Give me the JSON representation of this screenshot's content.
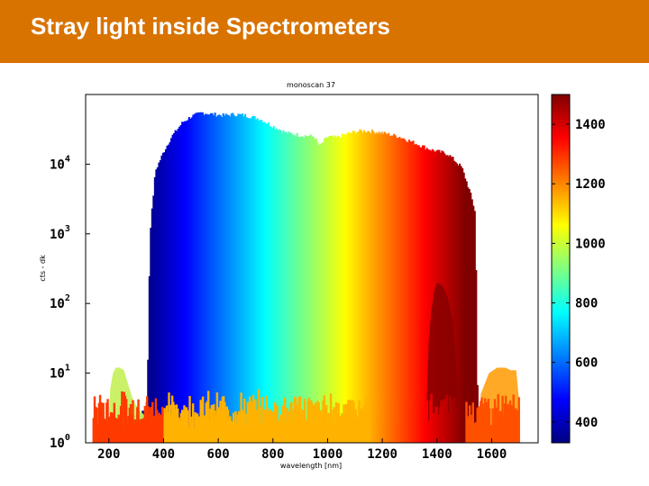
{
  "slide": {
    "title": "Stray light inside Spectrometers"
  },
  "chart_data": {
    "type": "area",
    "title": "monoscan 37",
    "xlabel": "wavelength [nm]",
    "ylabel": "cts - dk",
    "x_scale": "linear",
    "y_scale": "log",
    "xlim": [
      115,
      1770
    ],
    "ylim": [
      1,
      100000
    ],
    "x_ticks": [
      "200",
      "400",
      "600",
      "800",
      "1000",
      "1200",
      "1400",
      "1600"
    ],
    "x_tick_values": [
      200,
      400,
      600,
      800,
      1000,
      1200,
      1400,
      1600
    ],
    "y_ticks": [
      {
        "base": "10",
        "exp": "0",
        "value": 1
      },
      {
        "base": "10",
        "exp": "1",
        "value": 10
      },
      {
        "base": "10",
        "exp": "2",
        "value": 100
      },
      {
        "base": "10",
        "exp": "3",
        "value": 1000
      },
      {
        "base": "10",
        "exp": "4",
        "value": 10000
      }
    ],
    "colorbar": {
      "colormap": "jet",
      "range": [
        330,
        1500
      ],
      "ticks": [
        "400",
        "600",
        "800",
        "1000",
        "1200",
        "1400"
      ],
      "tick_values": [
        400,
        600,
        800,
        1000,
        1200,
        1400
      ]
    },
    "envelope": {
      "x": [
        140,
        170,
        200,
        250,
        300,
        330,
        340,
        350,
        370,
        400,
        430,
        470,
        500,
        540,
        580,
        620,
        660,
        700,
        750,
        800,
        850,
        900,
        950,
        970,
        1000,
        1030,
        1080,
        1120,
        1150,
        1200,
        1260,
        1320,
        1380,
        1440,
        1490,
        1520,
        1540,
        1550
      ],
      "cts": [
        1,
        1.2,
        1.5,
        2,
        2.5,
        3,
        4,
        1000,
        8000,
        15000,
        25000,
        40000,
        48000,
        55000,
        52000,
        50000,
        52000,
        50000,
        45000,
        35000,
        28000,
        26000,
        25000,
        18000,
        25000,
        24000,
        28000,
        30000,
        30000,
        28000,
        25000,
        20000,
        16000,
        14000,
        9000,
        4000,
        2000,
        1
      ]
    },
    "uv_stray_peak": {
      "x": [
        200,
        205,
        215,
        225,
        240,
        255,
        270,
        290,
        310,
        330,
        345
      ],
      "cts": [
        2,
        6,
        10,
        12,
        12,
        11,
        7,
        4,
        3,
        2.5,
        2
      ]
    },
    "nir_secondary_peak": {
      "x": [
        1360,
        1370,
        1380,
        1390,
        1400,
        1420,
        1440,
        1460,
        1480
      ],
      "cts": [
        2,
        30,
        80,
        150,
        200,
        180,
        120,
        50,
        3
      ]
    },
    "ir_stray_band": {
      "x": [
        1560,
        1590,
        1620,
        1650,
        1670,
        1690,
        1700
      ],
      "cts": [
        5,
        10,
        12,
        12,
        11,
        11,
        4
      ]
    },
    "noise_floor_cts": [
      1.5,
      3
    ]
  }
}
